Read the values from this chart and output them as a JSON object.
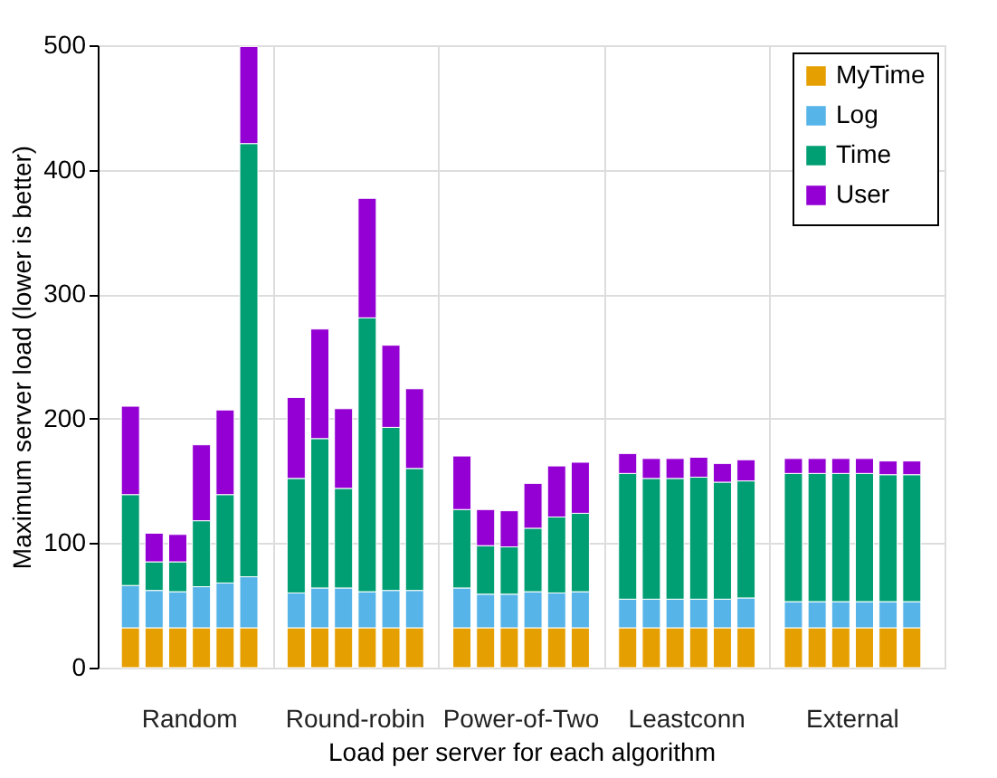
{
  "chart_data": {
    "type": "bar",
    "stacked": true,
    "xlabel": "Load per server for each algorithm",
    "ylabel": "Maximum server load (lower is better)",
    "categories": [
      null,
      null,
      null,
      null,
      null,
      null,
      null,
      null,
      null,
      null,
      null,
      null,
      null,
      null,
      null,
      null,
      null,
      null,
      null,
      null,
      null,
      null,
      null,
      null,
      null,
      null,
      null,
      null,
      null,
      null
    ],
    "annotations": [
      "Random",
      "Round-robin",
      "Power-of-Two",
      "Leastconn",
      "External"
    ],
    "series": [
      {
        "name": "MyTime",
        "color": "#e69f00",
        "values": [
          32,
          32,
          32,
          32,
          32,
          32,
          32,
          32,
          32,
          32,
          32,
          32,
          32,
          32,
          32,
          32,
          32,
          32,
          32,
          32,
          32,
          32,
          32,
          32,
          32,
          32,
          32,
          32,
          32,
          32
        ]
      },
      {
        "name": "Log",
        "color": "#56b4e9",
        "values": [
          34,
          30,
          29,
          33,
          36,
          41,
          28,
          32,
          32,
          29,
          30,
          30,
          32,
          27,
          27,
          29,
          28,
          29,
          23,
          23,
          23,
          23,
          23,
          24,
          21,
          21,
          21,
          21,
          21,
          21
        ]
      },
      {
        "name": "Time",
        "color": "#009e73",
        "values": [
          73,
          23,
          24,
          53,
          71,
          348,
          92,
          120,
          80,
          220,
          131,
          98,
          63,
          39,
          38,
          51,
          61,
          63,
          101,
          97,
          97,
          98,
          94,
          94,
          103,
          103,
          103,
          103,
          102,
          102
        ]
      },
      {
        "name": "User",
        "color": "#9400d3",
        "values": [
          71,
          23,
          22,
          61,
          68,
          78,
          65,
          88,
          64,
          96,
          66,
          64,
          43,
          29,
          29,
          36,
          41,
          41,
          16,
          16,
          16,
          16,
          15,
          17,
          12,
          12,
          12,
          12,
          11,
          11
        ]
      }
    ],
    "ylim": [
      0,
      500
    ],
    "yticks": [
      0,
      100,
      200,
      300,
      400,
      500
    ],
    "grid": true,
    "legend": "top right"
  }
}
